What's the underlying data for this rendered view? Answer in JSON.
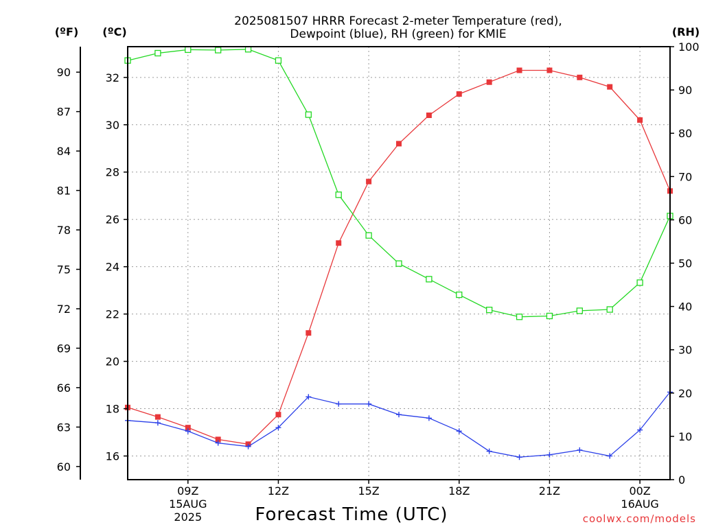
{
  "chart_data": {
    "type": "line",
    "title_line1": "2025081507 HRRR Forecast 2-meter Temperature (red),",
    "title_line2": "Dewpoint (blue), RH (green) for KMIE",
    "xlabel": "Forecast Time (UTC)",
    "credit": "coolwx.com/models",
    "unit_f": "(ºF)",
    "unit_c": "(ºC)",
    "unit_rh": "(RH)",
    "x_hours": [
      7,
      8,
      9,
      10,
      11,
      12,
      13,
      14,
      15,
      16,
      17,
      18,
      19,
      20,
      21,
      22,
      23,
      24,
      25
    ],
    "xlim_hours": [
      7,
      25
    ],
    "x_ticks": [
      {
        "hour": 9,
        "lines": [
          "09Z",
          "15AUG",
          "2025"
        ]
      },
      {
        "hour": 12,
        "lines": [
          "12Z"
        ]
      },
      {
        "hour": 15,
        "lines": [
          "15Z"
        ]
      },
      {
        "hour": 18,
        "lines": [
          "18Z"
        ]
      },
      {
        "hour": 21,
        "lines": [
          "21Z"
        ]
      },
      {
        "hour": 24,
        "lines": [
          "00Z",
          "16AUG"
        ]
      }
    ],
    "celsius_axis": {
      "lim": [
        15.0,
        33.3
      ],
      "ticks": [
        16,
        18,
        20,
        22,
        24,
        26,
        28,
        30,
        32
      ]
    },
    "fahrenheit_axis": {
      "ticks": [
        60,
        63,
        66,
        69,
        72,
        75,
        78,
        81,
        84,
        87,
        90
      ]
    },
    "rh_axis": {
      "lim": [
        0,
        100
      ],
      "ticks": [
        0,
        10,
        20,
        30,
        40,
        50,
        60,
        70,
        80,
        90,
        100
      ]
    },
    "series": [
      {
        "key": "temperature",
        "color": "#e8373a",
        "marker": "filled-square",
        "axis": "celsius",
        "values": [
          18.05,
          17.65,
          17.2,
          16.7,
          16.5,
          17.75,
          21.2,
          25.0,
          27.6,
          29.2,
          30.4,
          31.3,
          31.8,
          32.3,
          32.3,
          32.0,
          31.6,
          30.2,
          27.2
        ]
      },
      {
        "key": "dewpoint",
        "color": "#2a3fe8",
        "marker": "plus",
        "axis": "celsius",
        "values": [
          17.5,
          17.4,
          17.05,
          16.55,
          16.4,
          17.2,
          18.5,
          18.2,
          18.2,
          17.75,
          17.6,
          17.05,
          16.2,
          15.95,
          16.05,
          16.25,
          16.0,
          17.1,
          18.7
        ]
      },
      {
        "key": "rh",
        "color": "#22d822",
        "marker": "open-square",
        "axis": "rh",
        "values": [
          96.8,
          98.5,
          99.3,
          99.2,
          99.4,
          96.8,
          84.3,
          65.8,
          56.4,
          49.9,
          46.3,
          42.7,
          39.2,
          37.6,
          37.8,
          39.0,
          39.3,
          45.5,
          60.9
        ]
      }
    ]
  }
}
